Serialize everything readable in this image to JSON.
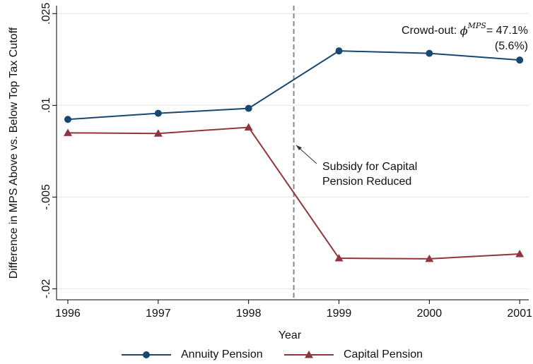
{
  "chart_data": {
    "type": "line",
    "x": [
      1996,
      1997,
      1998,
      1999,
      2000,
      2001
    ],
    "series": [
      {
        "name": "Annuity Pension",
        "color": "#1a476f",
        "marker": "circle",
        "values": [
          0.0077,
          0.0087,
          0.0095,
          0.0189,
          0.0185,
          0.0174
        ]
      },
      {
        "name": "Capital Pension",
        "color": "#90353b",
        "marker": "triangle",
        "values": [
          0.0055,
          0.0054,
          0.0064,
          -0.015,
          -0.0151,
          -0.0143
        ]
      }
    ],
    "xlim": [
      1995.875,
      2001.1
    ],
    "xticks": [
      1996,
      1997,
      1998,
      1999,
      2000,
      2001
    ],
    "ylim": [
      -0.0218,
      0.0263
    ],
    "yticks": [
      {
        "value": -0.02,
        "label": "-.02"
      },
      {
        "value": -0.005,
        "label": "-.005"
      },
      {
        "value": 0.01,
        "label": ".01"
      },
      {
        "value": 0.025,
        "label": ".025"
      }
    ],
    "grid": true,
    "x_label": "Year",
    "y_label": "Difference in MPS Above vs. Below Top Tax Cutoff",
    "vline": 1998.5,
    "annotation": {
      "lines": [
        "Subsidy for Capital",
        "Pension Reduced"
      ]
    },
    "crowd_out": {
      "prefix": "Crowd-out: ",
      "symbol": "ϕ",
      "superscript": "MPS",
      "estimate": "= 47.1%",
      "se": "(5.6%)"
    },
    "legend": "bottom"
  }
}
